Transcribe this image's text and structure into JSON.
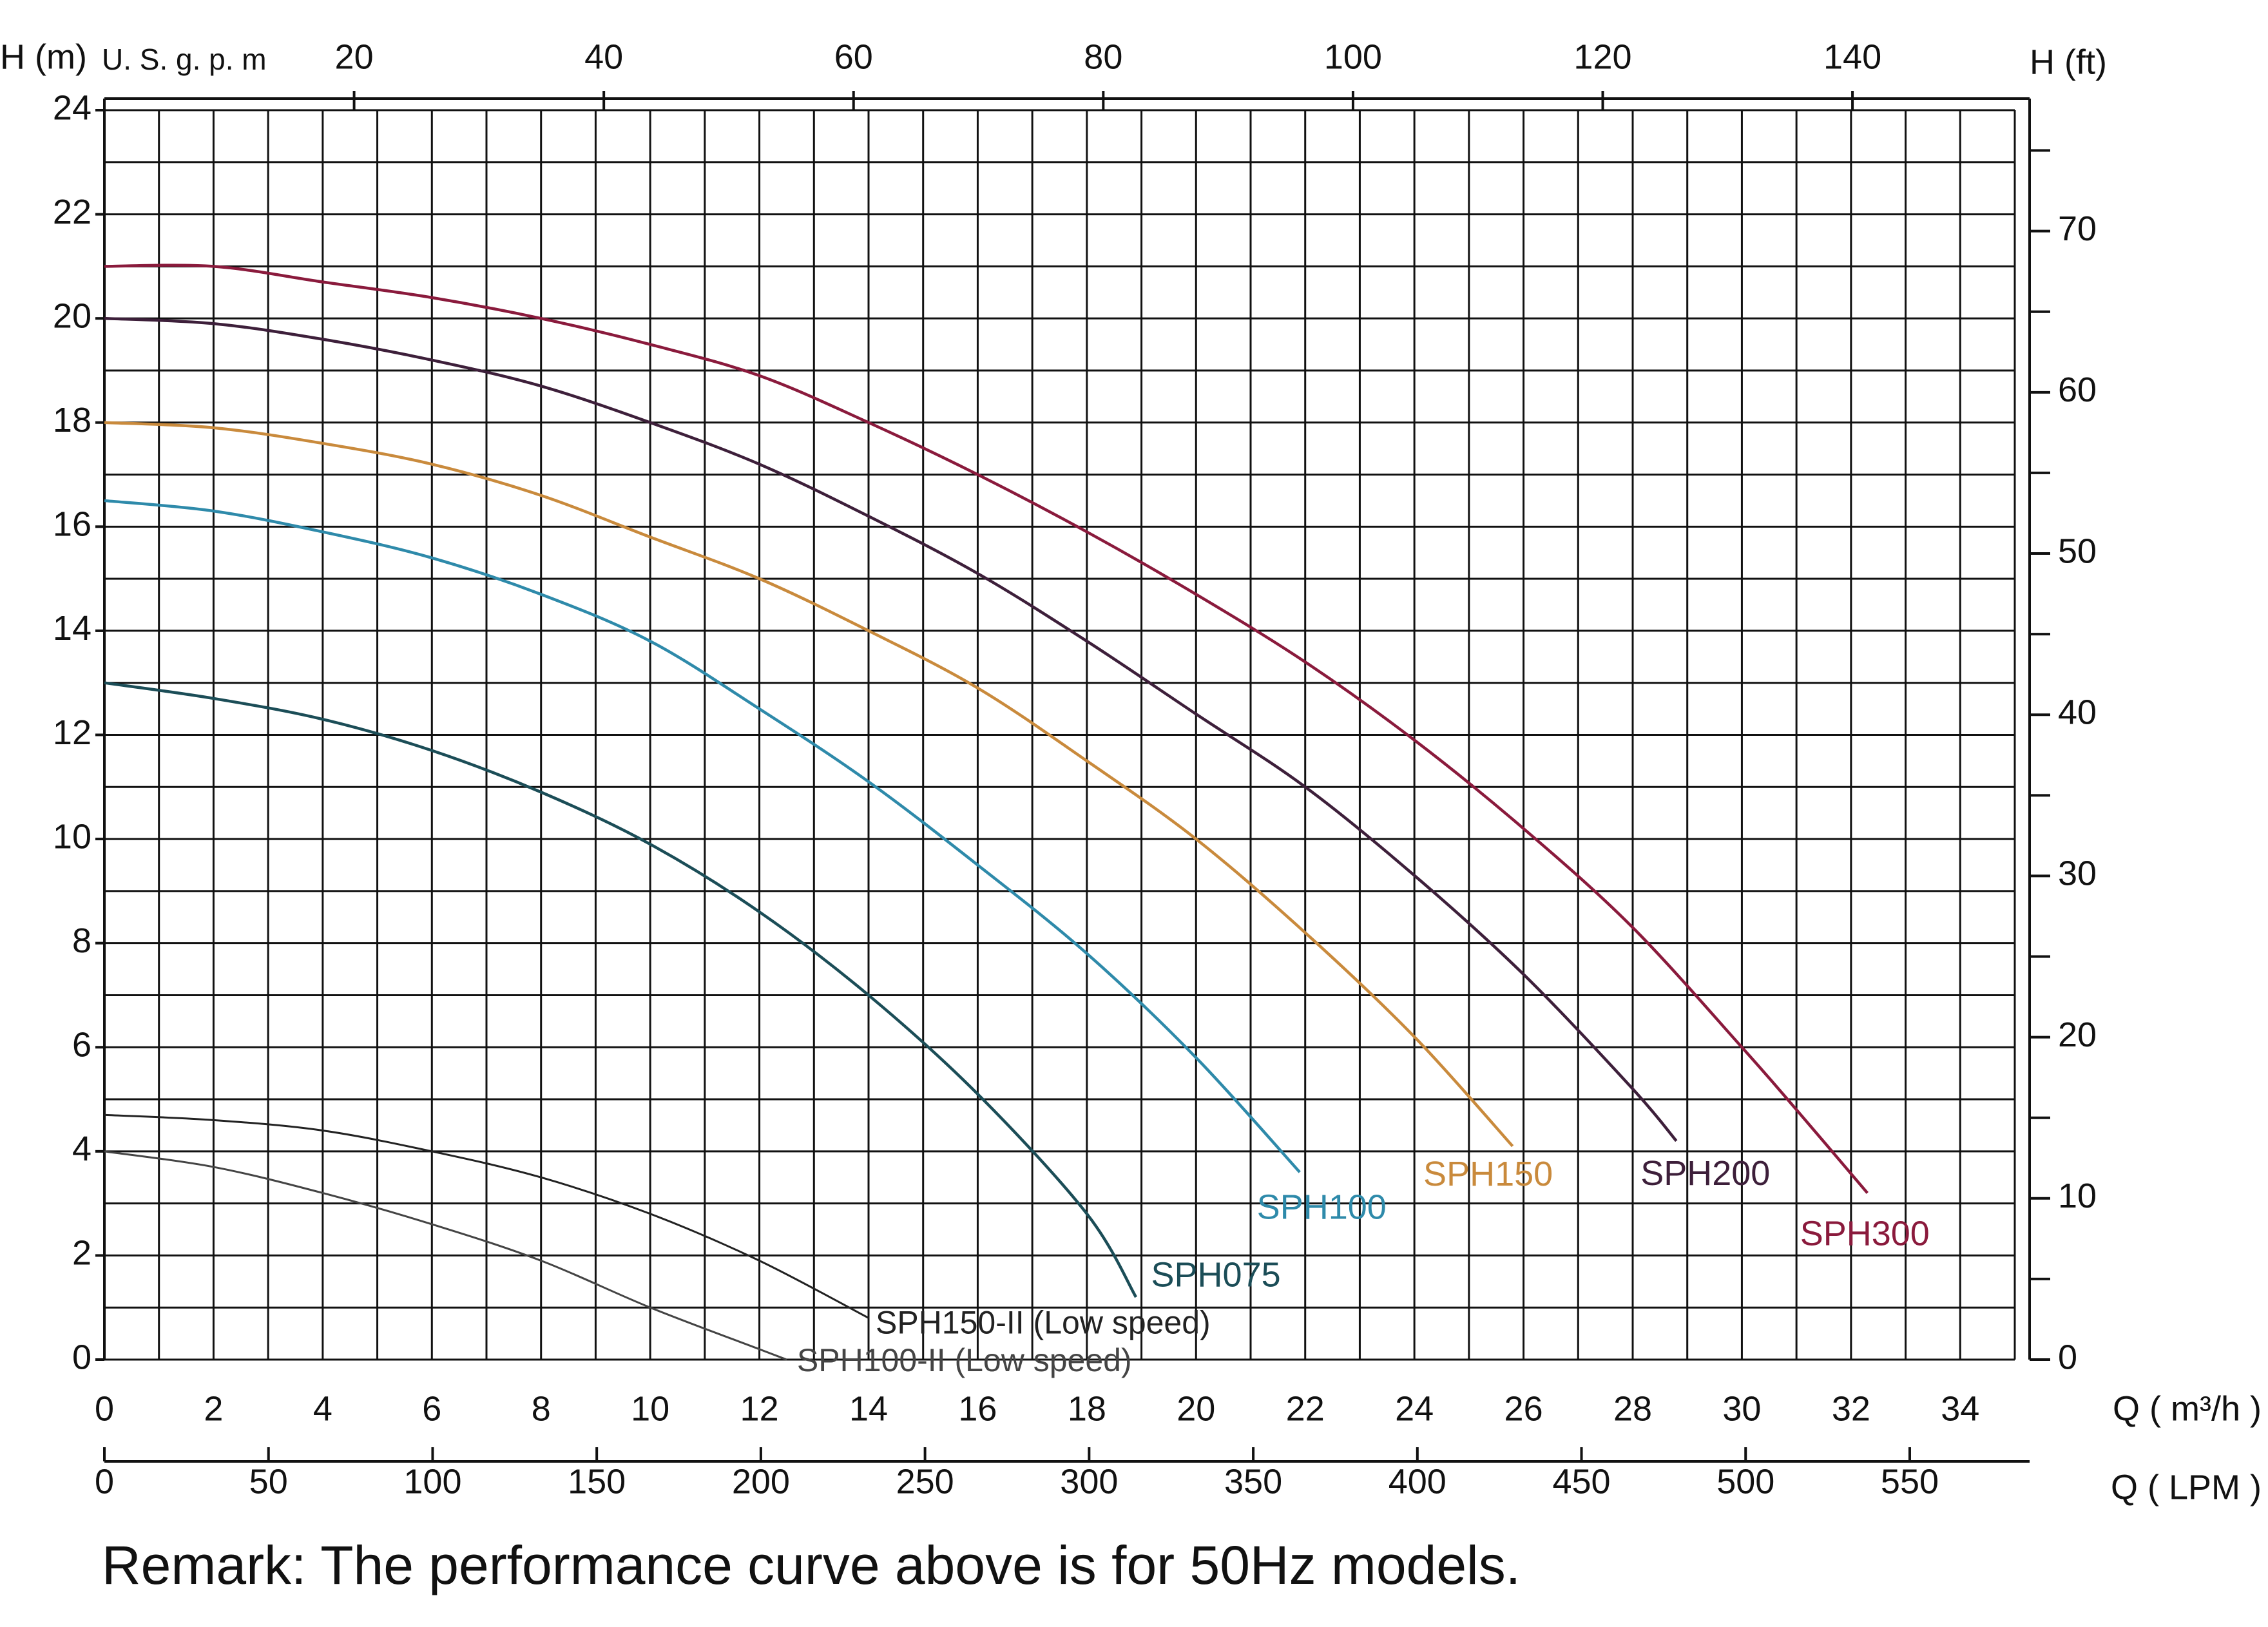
{
  "chart_data": {
    "type": "line",
    "y_label": "H (m)",
    "x_label": "Q ( m³/h )",
    "remark": "Remark: The performance curve above is for 50Hz models.",
    "xlim": [
      0,
      35
    ],
    "xticks": [
      0,
      2,
      4,
      6,
      8,
      10,
      12,
      14,
      16,
      18,
      20,
      22,
      24,
      26,
      28,
      30,
      32,
      34
    ],
    "ylim": [
      0,
      24
    ],
    "yticks": [
      0,
      2,
      4,
      6,
      8,
      10,
      12,
      14,
      16,
      18,
      20,
      22,
      24
    ],
    "grid": true,
    "top_axis": {
      "label": "U. S. g. p. m",
      "lim": [
        0,
        153
      ],
      "ticks": [
        20,
        40,
        60,
        80,
        100,
        120,
        140
      ]
    },
    "bottom_axis2": {
      "label": "Q ( LPM )",
      "lim": [
        0,
        582
      ],
      "ticks": [
        0,
        50,
        100,
        150,
        200,
        250,
        300,
        350,
        400,
        450,
        500,
        550
      ]
    },
    "right_axis": {
      "label": "H (ft)",
      "lim": [
        0,
        77.5
      ],
      "ticks": [
        0,
        10,
        20,
        30,
        40,
        50,
        60,
        70
      ]
    },
    "series": [
      {
        "name": "SPH300",
        "color": "#8a1a3c",
        "x": [
          0,
          2,
          4,
          6,
          8,
          10,
          12,
          14,
          16,
          18,
          20,
          22,
          24,
          26,
          28,
          30,
          31,
          32.3
        ],
        "values": [
          21,
          21,
          20.7,
          20.4,
          20,
          19.5,
          18.9,
          18,
          17,
          15.9,
          14.7,
          13.4,
          11.9,
          10.2,
          8.3,
          6,
          4.8,
          3.2
        ]
      },
      {
        "name": "SPH200",
        "color": "#3d1f3a",
        "x": [
          0,
          2,
          4,
          6,
          8,
          10,
          12,
          14,
          16,
          18,
          20,
          22,
          24,
          26,
          28,
          28.8
        ],
        "values": [
          20,
          19.9,
          19.6,
          19.2,
          18.7,
          18,
          17.2,
          16.2,
          15.1,
          13.8,
          12.4,
          11,
          9.3,
          7.4,
          5.2,
          4.2
        ]
      },
      {
        "name": "SPH150",
        "color": "#c98a3c",
        "x": [
          0,
          2,
          4,
          6,
          8,
          10,
          12,
          14,
          16,
          18,
          20,
          22,
          24,
          25.8
        ],
        "values": [
          18,
          17.9,
          17.6,
          17.2,
          16.6,
          15.8,
          15,
          14,
          12.9,
          11.5,
          10,
          8.2,
          6.2,
          4.1
        ]
      },
      {
        "name": "SPH100",
        "color": "#2e8aaa",
        "x": [
          0,
          2,
          4,
          6,
          8,
          10,
          12,
          14,
          16,
          18,
          20,
          21.9
        ],
        "values": [
          16.5,
          16.3,
          15.9,
          15.4,
          14.7,
          13.8,
          12.5,
          11.1,
          9.5,
          7.8,
          5.8,
          3.6
        ]
      },
      {
        "name": "SPH075",
        "color": "#1b4d57",
        "x": [
          0,
          2,
          4,
          6,
          8,
          10,
          12,
          14,
          16,
          18,
          18.9
        ],
        "values": [
          13,
          12.7,
          12.3,
          11.7,
          10.9,
          9.9,
          8.6,
          7,
          5.1,
          2.8,
          1.2
        ]
      },
      {
        "name": "SPH150-II (Low speed)",
        "color": "#222222",
        "x": [
          0,
          2,
          4,
          6,
          8,
          10,
          12,
          14
        ],
        "values": [
          4.7,
          4.6,
          4.4,
          4,
          3.5,
          2.8,
          1.9,
          0.8
        ]
      },
      {
        "name": "SPH100-II (Low speed)",
        "color": "#444444",
        "x": [
          0,
          2,
          4,
          6,
          8,
          10,
          12,
          12.5
        ],
        "values": [
          4,
          3.7,
          3.2,
          2.6,
          1.9,
          1,
          0.2,
          0
        ]
      }
    ]
  }
}
